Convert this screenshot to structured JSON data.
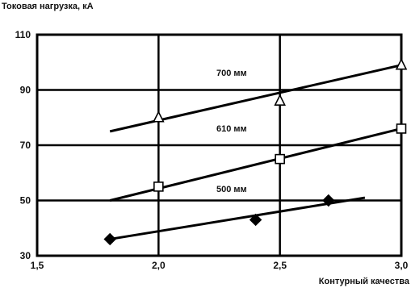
{
  "chart_data": {
    "type": "scatter",
    "ylabel": "Токовая нагрузка, кА",
    "xlabel": "Контурный качества",
    "xlim": [
      1.5,
      3.0
    ],
    "ylim": [
      30,
      110
    ],
    "x_ticks": [
      "1,5",
      "2,0",
      "2,5",
      "3,0"
    ],
    "y_ticks": [
      "30",
      "50",
      "70",
      "90",
      "110"
    ],
    "grid": true,
    "series": [
      {
        "name": "700 мм",
        "marker": "triangle",
        "points": [
          [
            2.0,
            80
          ],
          [
            2.5,
            86
          ],
          [
            3.0,
            99
          ]
        ],
        "fit": [
          [
            1.8,
            75
          ],
          [
            3.0,
            99
          ]
        ]
      },
      {
        "name": "610 мм",
        "marker": "square",
        "points": [
          [
            2.0,
            55
          ],
          [
            2.5,
            65
          ],
          [
            3.0,
            76
          ]
        ],
        "fit": [
          [
            1.8,
            50
          ],
          [
            3.0,
            76
          ]
        ]
      },
      {
        "name": "500 мм",
        "marker": "diamond",
        "points": [
          [
            1.8,
            36
          ],
          [
            2.4,
            43
          ],
          [
            2.7,
            50
          ]
        ],
        "fit": [
          [
            1.8,
            36
          ],
          [
            2.85,
            51
          ]
        ]
      }
    ]
  }
}
